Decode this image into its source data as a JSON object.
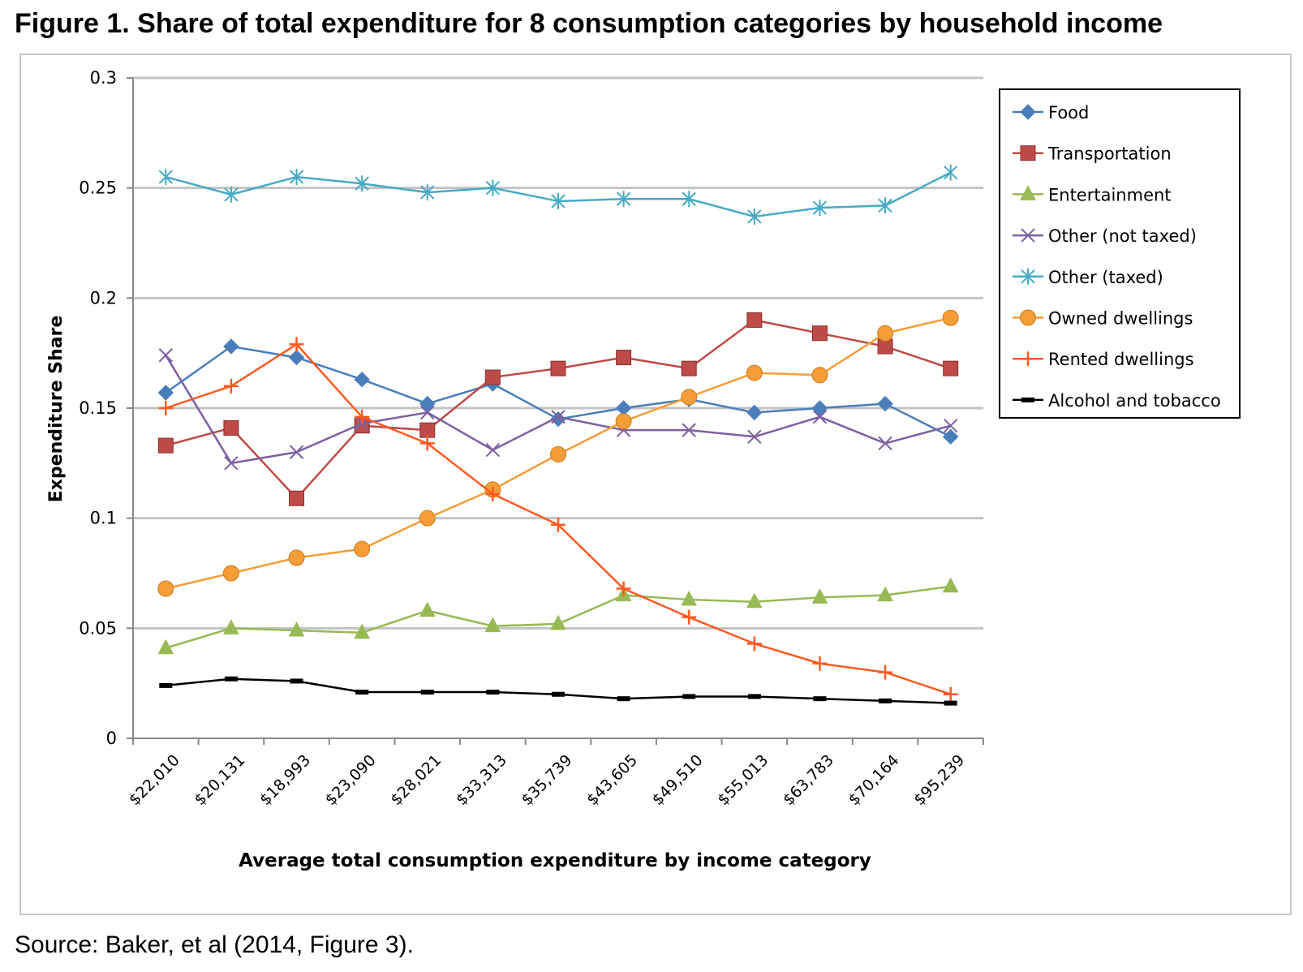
{
  "figure_title": "Figure 1. Share of total expenditure for 8 consumption categories by household income",
  "source": "Source: Baker, et al (2014, Figure 3).",
  "chart_data": {
    "type": "line",
    "title": "",
    "xlabel": "Average total consumption expenditure by income category",
    "ylabel": "Expenditure Share",
    "categories": [
      "$22,010",
      "$20,131",
      "$18,993",
      "$23,090",
      "$28,021",
      "$33,313",
      "$35,739",
      "$43,605",
      "$49,510",
      "$55,013",
      "$63,783",
      "$70,164",
      "$95,239"
    ],
    "ylim": [
      0,
      0.3
    ],
    "yticks": [
      "0",
      "0.05",
      "0.1",
      "0.15",
      "0.2",
      "0.25",
      "0.3"
    ],
    "grid": "horizontal",
    "legend_position": "right",
    "series": [
      {
        "name": "Food",
        "color": "#4a7ebb",
        "marker": "diamond",
        "values": [
          0.157,
          0.178,
          0.173,
          0.163,
          0.152,
          0.161,
          0.145,
          0.15,
          0.154,
          0.148,
          0.15,
          0.152,
          0.137
        ]
      },
      {
        "name": "Transportation",
        "color": "#be4b48",
        "marker": "square",
        "values": [
          0.133,
          0.141,
          0.109,
          0.142,
          0.14,
          0.164,
          0.168,
          0.173,
          0.168,
          0.19,
          0.184,
          0.178,
          0.168
        ]
      },
      {
        "name": "Entertainment",
        "color": "#98b954",
        "marker": "triangle",
        "values": [
          0.041,
          0.05,
          0.049,
          0.048,
          0.058,
          0.051,
          0.052,
          0.065,
          0.063,
          0.062,
          0.064,
          0.065,
          0.069
        ]
      },
      {
        "name": "Other (not taxed)",
        "color": "#7d60a0",
        "marker": "x",
        "values": [
          0.174,
          0.125,
          0.13,
          0.143,
          0.148,
          0.131,
          0.146,
          0.14,
          0.14,
          0.137,
          0.146,
          0.134,
          0.142
        ]
      },
      {
        "name": "Other (taxed)",
        "color": "#46aac5",
        "marker": "asterisk",
        "values": [
          0.255,
          0.247,
          0.255,
          0.252,
          0.248,
          0.25,
          0.244,
          0.245,
          0.245,
          0.237,
          0.241,
          0.242,
          0.257
        ]
      },
      {
        "name": "Owned dwellings",
        "color": "#f59d37",
        "marker": "circle",
        "values": [
          0.068,
          0.075,
          0.082,
          0.086,
          0.1,
          0.113,
          0.129,
          0.144,
          0.155,
          0.166,
          0.165,
          0.184,
          0.191
        ]
      },
      {
        "name": "Rented dwellings",
        "color": "#ff5a21",
        "marker": "plus",
        "values": [
          0.15,
          0.16,
          0.179,
          0.146,
          0.134,
          0.111,
          0.097,
          0.068,
          0.055,
          0.043,
          0.034,
          0.03,
          0.02
        ]
      },
      {
        "name": "Alcohol and tobacco",
        "color": "#000000",
        "marker": "dash",
        "values": [
          0.024,
          0.027,
          0.026,
          0.021,
          0.021,
          0.021,
          0.02,
          0.018,
          0.019,
          0.019,
          0.018,
          0.017,
          0.016
        ]
      }
    ]
  }
}
